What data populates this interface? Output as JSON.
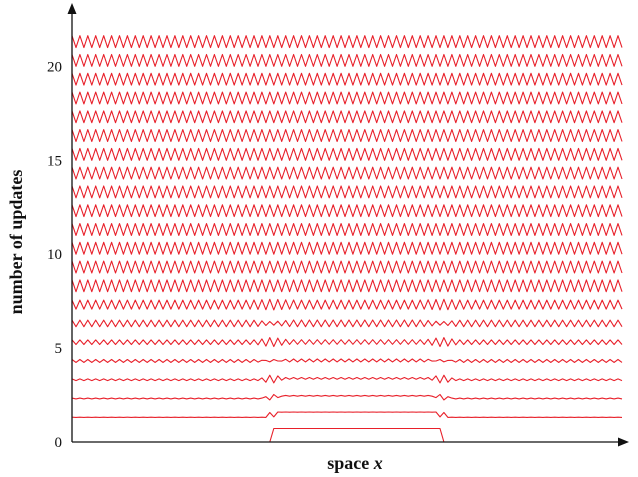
{
  "chart_data": {
    "type": "line",
    "title": "",
    "xlabel_text": "space ",
    "xlabel_var": "x",
    "ylabel": "number of updates",
    "ylim": [
      0,
      23
    ],
    "yticks": [
      "0",
      "5",
      "10",
      "15",
      "20"
    ],
    "ytick_values": [
      0,
      5,
      10,
      15,
      20
    ],
    "num_traces": 21,
    "series_color": "#e8202a",
    "initial_pulse": {
      "x_start": 0.36,
      "x_end": 0.67,
      "height": 0.8
    },
    "trace_offsets": [
      0,
      1,
      2,
      3,
      4,
      5,
      6,
      7,
      8,
      9,
      10,
      11,
      12,
      13,
      14,
      15,
      16,
      17,
      18,
      19,
      20,
      21
    ],
    "grid": false,
    "legend": "none"
  }
}
